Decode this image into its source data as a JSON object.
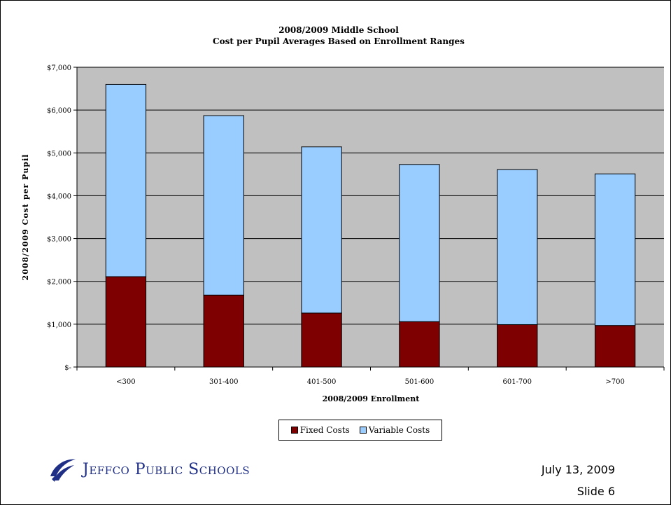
{
  "chart_data": {
    "type": "bar",
    "stacked": true,
    "title": "2008/2009 Middle School",
    "subtitle": "Cost per Pupil Averages Based on Enrollment Ranges",
    "xlabel": "2008/2009 Enrollment",
    "ylabel": "2008/2009 Cost per Pupil",
    "categories": [
      "<300",
      "301-400",
      "401-500",
      "501-600",
      "601-700",
      ">700"
    ],
    "series": [
      {
        "name": "Fixed Costs",
        "color": "#7f0000",
        "values": [
          2110,
          1680,
          1260,
          1060,
          990,
          970
        ]
      },
      {
        "name": "Variable Costs",
        "color": "#99ccff",
        "values": [
          4490,
          4190,
          3880,
          3670,
          3620,
          3540
        ]
      }
    ],
    "ylim": [
      0,
      7000
    ],
    "yticks": [
      0,
      1000,
      2000,
      3000,
      4000,
      5000,
      6000,
      7000
    ],
    "ytick_labels": [
      "$-",
      "$1,000",
      "$2,000",
      "$3,000",
      "$4,000",
      "$5,000",
      "$6,000",
      "$7,000"
    ],
    "grid": true,
    "plot_background": "#c0c0c0",
    "legend_position": "bottom"
  },
  "footer": {
    "logo_text": "Jeffco Public Schools",
    "date": "July 13, 2009",
    "slide": "Slide 6"
  }
}
